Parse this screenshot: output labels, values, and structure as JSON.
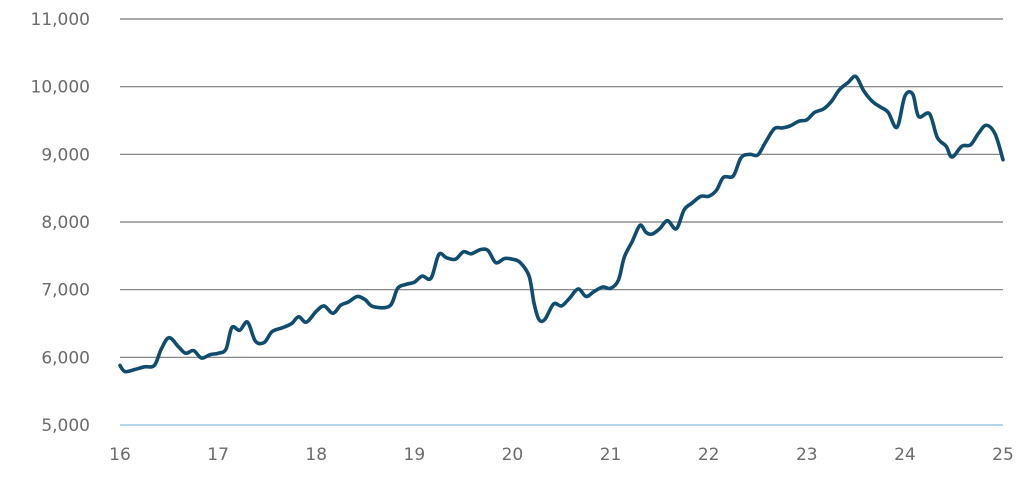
{
  "chart_data": {
    "type": "line",
    "title": "",
    "xlabel": "",
    "ylabel": "",
    "x_ticks": [
      "16",
      "17",
      "18",
      "19",
      "20",
      "21",
      "22",
      "23",
      "24",
      "25"
    ],
    "y_ticks": [
      "5,000",
      "6,000",
      "7,000",
      "8,000",
      "9,000",
      "10,000",
      "11,000"
    ],
    "xlim": [
      16,
      25
    ],
    "ylim": [
      5000,
      11000
    ],
    "grid": true,
    "legend": "none",
    "series": [
      {
        "color": "#0f4c6e",
        "points": [
          [
            16.0,
            5880
          ],
          [
            16.05,
            5790
          ],
          [
            16.15,
            5820
          ],
          [
            16.25,
            5860
          ],
          [
            16.35,
            5880
          ],
          [
            16.42,
            6120
          ],
          [
            16.5,
            6290
          ],
          [
            16.6,
            6150
          ],
          [
            16.67,
            6060
          ],
          [
            16.75,
            6100
          ],
          [
            16.83,
            5990
          ],
          [
            16.92,
            6040
          ],
          [
            17.0,
            6060
          ],
          [
            17.08,
            6120
          ],
          [
            17.14,
            6440
          ],
          [
            17.22,
            6400
          ],
          [
            17.3,
            6520
          ],
          [
            17.38,
            6240
          ],
          [
            17.47,
            6220
          ],
          [
            17.55,
            6380
          ],
          [
            17.66,
            6440
          ],
          [
            17.75,
            6500
          ],
          [
            17.82,
            6600
          ],
          [
            17.9,
            6520
          ],
          [
            18.0,
            6680
          ],
          [
            18.08,
            6760
          ],
          [
            18.17,
            6650
          ],
          [
            18.25,
            6770
          ],
          [
            18.33,
            6820
          ],
          [
            18.42,
            6900
          ],
          [
            18.5,
            6850
          ],
          [
            18.58,
            6750
          ],
          [
            18.75,
            6760
          ],
          [
            18.83,
            7020
          ],
          [
            18.92,
            7080
          ],
          [
            19.0,
            7110
          ],
          [
            19.08,
            7200
          ],
          [
            19.17,
            7170
          ],
          [
            19.25,
            7520
          ],
          [
            19.33,
            7470
          ],
          [
            19.42,
            7450
          ],
          [
            19.5,
            7560
          ],
          [
            19.58,
            7530
          ],
          [
            19.67,
            7590
          ],
          [
            19.75,
            7580
          ],
          [
            19.83,
            7400
          ],
          [
            19.92,
            7460
          ],
          [
            20.0,
            7450
          ],
          [
            20.08,
            7400
          ],
          [
            20.17,
            7200
          ],
          [
            20.22,
            6800
          ],
          [
            20.27,
            6560
          ],
          [
            20.33,
            6560
          ],
          [
            20.42,
            6790
          ],
          [
            20.5,
            6760
          ],
          [
            20.58,
            6870
          ],
          [
            20.67,
            7010
          ],
          [
            20.75,
            6900
          ],
          [
            20.83,
            6970
          ],
          [
            20.92,
            7040
          ],
          [
            21.0,
            7020
          ],
          [
            21.08,
            7140
          ],
          [
            21.14,
            7480
          ],
          [
            21.22,
            7710
          ],
          [
            21.3,
            7950
          ],
          [
            21.36,
            7850
          ],
          [
            21.42,
            7820
          ],
          [
            21.5,
            7900
          ],
          [
            21.58,
            8020
          ],
          [
            21.67,
            7900
          ],
          [
            21.75,
            8180
          ],
          [
            21.83,
            8280
          ],
          [
            21.92,
            8380
          ],
          [
            22.0,
            8380
          ],
          [
            22.08,
            8470
          ],
          [
            22.15,
            8660
          ],
          [
            22.25,
            8680
          ],
          [
            22.33,
            8950
          ],
          [
            22.42,
            9000
          ],
          [
            22.5,
            8990
          ],
          [
            22.58,
            9180
          ],
          [
            22.67,
            9380
          ],
          [
            22.75,
            9390
          ],
          [
            22.83,
            9420
          ],
          [
            22.92,
            9490
          ],
          [
            23.0,
            9510
          ],
          [
            23.08,
            9620
          ],
          [
            23.17,
            9670
          ],
          [
            23.25,
            9780
          ],
          [
            23.33,
            9950
          ],
          [
            23.42,
            10060
          ],
          [
            23.5,
            10150
          ],
          [
            23.58,
            9940
          ],
          [
            23.67,
            9780
          ],
          [
            23.75,
            9700
          ],
          [
            23.83,
            9620
          ],
          [
            23.92,
            9400
          ],
          [
            24.0,
            9860
          ],
          [
            24.08,
            9890
          ],
          [
            24.14,
            9560
          ],
          [
            24.25,
            9600
          ],
          [
            24.33,
            9250
          ],
          [
            24.42,
            9120
          ],
          [
            24.48,
            8960
          ],
          [
            24.58,
            9120
          ],
          [
            24.67,
            9140
          ],
          [
            24.75,
            9310
          ],
          [
            24.83,
            9430
          ],
          [
            24.92,
            9300
          ],
          [
            25.0,
            8920
          ]
        ]
      }
    ]
  }
}
